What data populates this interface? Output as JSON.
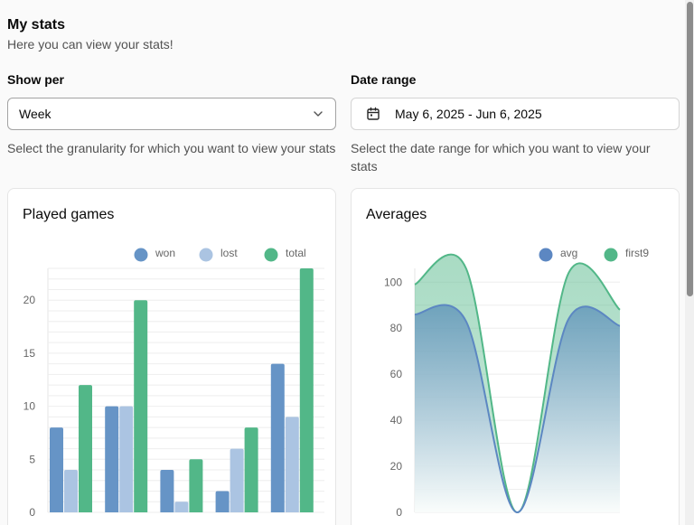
{
  "header": {
    "title": "My stats",
    "subtitle": "Here you can view your stats!"
  },
  "show_per": {
    "label": "Show per",
    "value": "Week",
    "help": "Select the granularity for which you want to view your stats"
  },
  "date_range": {
    "label": "Date range",
    "value": "May 6, 2025 - Jun 6, 2025",
    "help": "Select the date range for which you want to view your stats"
  },
  "played_card": {
    "title": "Played games"
  },
  "averages_card": {
    "title": "Averages"
  },
  "colors": {
    "won": "#6694c6",
    "lost": "#abc4e2",
    "total": "#52b788",
    "avg": "#5c87c2",
    "first9": "#52b788"
  },
  "chart_data": [
    {
      "type": "bar",
      "title": "Played games",
      "categories": [
        "",
        "",
        "",
        "",
        ""
      ],
      "series": [
        {
          "name": "won",
          "values": [
            8,
            10,
            4,
            2,
            14
          ]
        },
        {
          "name": "lost",
          "values": [
            4,
            10,
            1,
            6,
            9
          ]
        },
        {
          "name": "total",
          "values": [
            12,
            20,
            5,
            8,
            23
          ]
        }
      ],
      "yticks": [
        "0",
        "5",
        "10",
        "15",
        "20"
      ],
      "ylim": [
        0,
        23
      ],
      "grid": true,
      "legend": "top-right"
    },
    {
      "type": "area",
      "title": "Averages",
      "x": [
        0,
        1,
        2,
        3,
        4
      ],
      "series": [
        {
          "name": "avg",
          "values": [
            86,
            83,
            0,
            84,
            81
          ]
        },
        {
          "name": "first9",
          "values": [
            99,
            106,
            0,
            104,
            88
          ]
        }
      ],
      "yticks": [
        "0",
        "20",
        "40",
        "60",
        "80",
        "100"
      ],
      "ylim": [
        0,
        106
      ],
      "grid": true,
      "legend": "top-right"
    }
  ]
}
